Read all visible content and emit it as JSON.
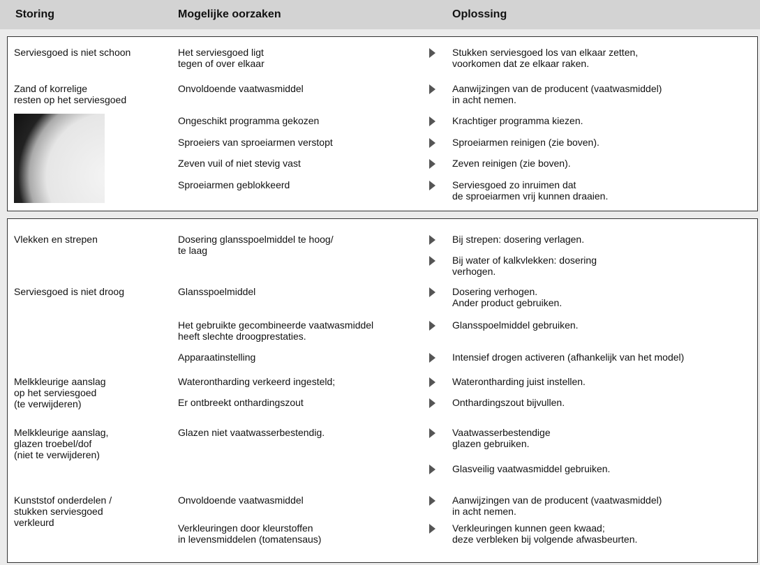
{
  "header": {
    "storing": "Storing",
    "oorzaken": "Mogelijke oorzaken",
    "oplossing": "Oplossing"
  },
  "sections": [
    {
      "storingen": [
        "Serviesgoed is niet schoon",
        "Zand of korrelige\nresten op het serviesgoed"
      ],
      "oorzaken": [
        "Het serviesgoed ligt\ntegen of over elkaar",
        "Onvoldoende vaatwasmiddel",
        "Ongeschikt programma gekozen",
        "Sproeiers van sproeiarmen verstopt",
        "Zeven vuil of niet stevig vast",
        "Sproeiarmen geblokkeerd"
      ],
      "oplossingen": [
        "Stukken serviesgoed los van elkaar zetten,\nvoorkomen dat ze elkaar raken.",
        "Aanwijzingen van de producent (vaatwasmiddel)\nin acht nemen.",
        "Krachtiger programma kiezen.",
        "Sproeiarmen reinigen (zie boven).",
        "Zeven reinigen (zie boven).",
        "Serviesgoed zo inruimen dat\nde sproeiarmen vrij kunnen draaien."
      ]
    },
    {
      "storingen": [
        "Vlekken en strepen",
        "Serviesgoed is niet droog",
        "Melkkleurige aanslag\nop het serviesgoed\n(te verwijderen)",
        "Melkkleurige aanslag,\nglazen troebel/dof\n(niet te verwijderen)",
        "Kunststof onderdelen /\nstukken serviesgoed\nverkleurd"
      ],
      "oorzaken": [
        "Dosering glansspoelmiddel te hoog/\nte laag",
        "Glansspoelmiddel",
        "Het gebruikte gecombineerde vaatwasmiddel\nheeft slechte droogprestaties.",
        "Apparaatinstelling",
        "Waterontharding verkeerd ingesteld;",
        "Er ontbreekt onthardingszout",
        "Glazen niet vaatwasserbestendig.",
        "Onvoldoende vaatwasmiddel",
        "Verkleuringen door kleurstoffen\nin levensmiddelen (tomatensaus)"
      ],
      "oplossingen": [
        "Bij strepen: dosering verlagen.",
        "Bij water of kalkvlekken: dosering\nverhogen.",
        "Dosering verhogen.\nAnder product gebruiken.",
        "Glansspoelmiddel gebruiken.",
        "Intensief drogen activeren (afhankelijk van het model)",
        "Waterontharding juist instellen.",
        "Onthardingszout bijvullen.",
        "Vaatwasserbestendige\nglazen gebruiken.",
        "Glasveilig vaatwasmiddel gebruiken.",
        "Aanwijzingen van de producent (vaatwasmiddel)\nin acht nemen.",
        "Verkleuringen kunnen geen kwaad;\ndeze verbleken bij volgende afwasbeurten."
      ]
    }
  ]
}
